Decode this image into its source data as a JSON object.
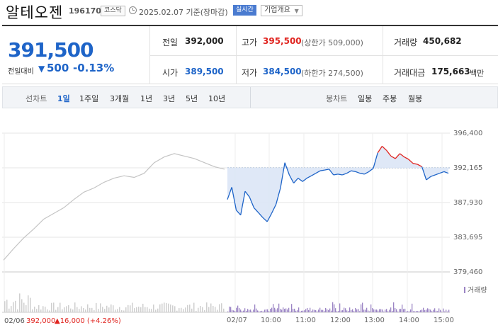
{
  "header": {
    "stock_name": "알테오젠",
    "stock_code": "196170",
    "market": "코스닥",
    "date": "2025.02.07",
    "basis": "기준(장마감)",
    "realtime": "실시간",
    "company_btn": "기업개요"
  },
  "price": {
    "current": "391,500",
    "diff_label": "전일대비",
    "diff_arrow": "▼",
    "diff_value": "500",
    "diff_rate": "-0.13%",
    "color_down": "#1e64c8",
    "color_up": "#e0241f"
  },
  "stats": {
    "prev_close_label": "전일",
    "prev_close": "392,000",
    "high_label": "고가",
    "high": "395,500",
    "upper_limit": "(상한가 509,000)",
    "volume_label": "거래량",
    "volume": "450,682",
    "open_label": "시가",
    "open": "389,500",
    "low_label": "저가",
    "low": "384,500",
    "lower_limit": "(하한가 274,500)",
    "amount_label": "거래대금",
    "amount": "175,663",
    "amount_unit": "백만"
  },
  "periods": {
    "line_label": "선차트",
    "line_tabs": [
      "1일",
      "1주일",
      "3개월",
      "1년",
      "3년",
      "5년",
      "10년"
    ],
    "active": "1일",
    "candle_label": "봉차트",
    "candle_tabs": [
      "일봉",
      "주봉",
      "월봉"
    ]
  },
  "chart_data": {
    "type": "line",
    "y_ticks": [
      "396,400",
      "392,165",
      "387,930",
      "383,695",
      "379,460"
    ],
    "ylim": [
      379460,
      396400
    ],
    "reference_price": 392165,
    "x_ticks": [
      "02/06",
      "02/07",
      "10:00",
      "11:00",
      "12:00",
      "13:00",
      "14:00",
      "15:00"
    ],
    "volume_legend": "거래량",
    "prev_day_summary": {
      "date": "02/06",
      "price": "392,000",
      "change": "▲16,000 (+4.26%)"
    },
    "series": [
      {
        "values": [
          380900,
          382300,
          383600,
          384700,
          385900,
          386600,
          387300,
          388300,
          389200,
          389700,
          390400,
          390900,
          391200,
          391000,
          391500,
          392800,
          393500,
          393900,
          393600,
          393300,
          392800,
          392300,
          392000
        ]
      },
      {
        "values": [
          388300,
          389800,
          387000,
          386400,
          389300,
          388600,
          387300,
          386700,
          386100,
          385600,
          386600,
          387700,
          389700,
          392800,
          391300,
          390300,
          390900,
          390500,
          390900,
          391200,
          391500,
          391800,
          391900,
          392000,
          391300,
          391400,
          391300,
          391500,
          391800,
          391700,
          391500,
          391400,
          391700,
          392100,
          394000,
          394800,
          394300,
          393600,
          393300,
          393900,
          393500,
          393200,
          392700,
          392600,
          392300,
          390700,
          391100,
          391300,
          391500,
          391700,
          391500
        ]
      }
    ]
  },
  "colors": {
    "accent": "#1e64c8",
    "up": "#e0241f",
    "grid": "#e6e6e6",
    "volume": "#9b84c4"
  }
}
